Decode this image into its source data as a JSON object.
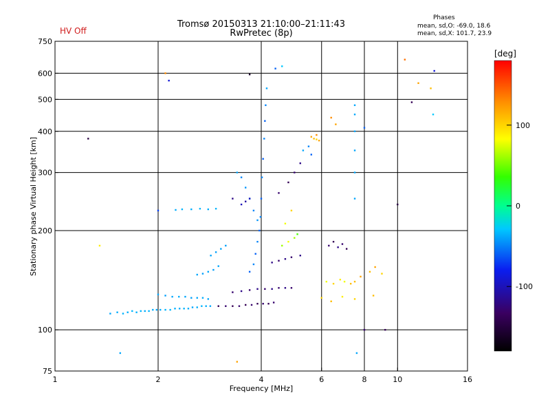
{
  "header": {
    "status": "HV Off",
    "title": "Tromsø 20150313 21:10:00–21:11:43",
    "subtitle": "RwPretec (8p)",
    "stats_title": "Phases",
    "stats_line1": "mean, sd,O: -69.0, 18.6",
    "stats_line2": "mean, sd,X: 101.7, 23.9"
  },
  "colorbar": {
    "unit": "[deg]",
    "range": [
      -180,
      180
    ],
    "ticks": [
      {
        "value": 100,
        "label": "100"
      },
      {
        "value": 0,
        "label": "0"
      },
      {
        "value": -100,
        "label": "-100"
      }
    ]
  },
  "chart_data": {
    "type": "scatter",
    "xlabel": "Frequency [MHz]",
    "ylabel": "Stationary phase Virtual Height [km]",
    "xscale": "log",
    "yscale": "log",
    "xlim": [
      1,
      16
    ],
    "ylim": [
      75,
      750
    ],
    "xticks": [
      1,
      2,
      4,
      6,
      8,
      10,
      16
    ],
    "yticks": [
      75,
      100,
      200,
      300,
      400,
      500,
      600,
      750
    ],
    "grid": true,
    "colorscale": "phase_deg",
    "series": [
      {
        "points": [
          [
            1.45,
            112,
            -40
          ],
          [
            1.52,
            113,
            -38
          ],
          [
            1.58,
            112,
            -36
          ],
          [
            1.63,
            113,
            -38
          ],
          [
            1.68,
            114,
            -35
          ],
          [
            1.73,
            113,
            -37
          ],
          [
            1.78,
            114,
            -36
          ],
          [
            1.83,
            114,
            -38
          ],
          [
            1.88,
            114,
            -36
          ],
          [
            1.93,
            115,
            -38
          ],
          [
            1.98,
            115,
            -40
          ],
          [
            2.03,
            115,
            -38
          ],
          [
            2.1,
            115,
            -36
          ],
          [
            2.17,
            115,
            -35
          ],
          [
            2.24,
            116,
            -37
          ],
          [
            2.31,
            116,
            -38
          ],
          [
            2.38,
            116,
            -36
          ],
          [
            2.45,
            116,
            -38
          ],
          [
            2.52,
            117,
            -40
          ],
          [
            2.6,
            117,
            -38
          ],
          [
            2.68,
            118,
            -36
          ],
          [
            2.76,
            118,
            -38
          ],
          [
            2.84,
            118,
            -40
          ],
          [
            2.0,
            128,
            -40
          ],
          [
            2.1,
            127,
            -42
          ],
          [
            2.2,
            126,
            -40
          ],
          [
            2.3,
            126,
            -38
          ],
          [
            2.4,
            126,
            -40
          ],
          [
            2.5,
            125,
            -42
          ],
          [
            2.6,
            125,
            -40
          ],
          [
            2.7,
            125,
            -38
          ],
          [
            2.8,
            124,
            -40
          ],
          [
            2.6,
            147,
            -40
          ],
          [
            2.7,
            148,
            -42
          ],
          [
            2.8,
            150,
            -40
          ],
          [
            2.9,
            152,
            -42
          ],
          [
            3.0,
            156,
            -40
          ],
          [
            2.85,
            168,
            -40
          ],
          [
            2.95,
            172,
            -42
          ],
          [
            3.05,
            176,
            -40
          ],
          [
            3.15,
            180,
            -42
          ],
          [
            2.35,
            232,
            -36
          ],
          [
            2.5,
            232,
            -38
          ],
          [
            2.65,
            233,
            -36
          ],
          [
            2.8,
            232,
            -38
          ],
          [
            2.95,
            233,
            -36
          ],
          [
            2.0,
            230,
            -70
          ],
          [
            2.25,
            231,
            -38
          ],
          [
            3.0,
            118,
            -140
          ],
          [
            3.15,
            118,
            -130
          ],
          [
            3.3,
            118,
            -140
          ],
          [
            3.45,
            118,
            -130
          ],
          [
            3.6,
            119,
            -140
          ],
          [
            3.75,
            119,
            -130
          ],
          [
            3.9,
            120,
            -140
          ],
          [
            4.05,
            120,
            -130
          ],
          [
            4.2,
            120,
            -140
          ],
          [
            4.35,
            121,
            -130
          ],
          [
            3.3,
            130,
            -130
          ],
          [
            3.5,
            131,
            -120
          ],
          [
            3.7,
            132,
            -130
          ],
          [
            3.9,
            133,
            -120
          ],
          [
            4.1,
            133,
            -130
          ],
          [
            4.3,
            133,
            -120
          ],
          [
            4.5,
            134,
            -130
          ],
          [
            4.7,
            134,
            -120
          ],
          [
            4.9,
            134,
            -130
          ],
          [
            3.7,
            150,
            -60
          ],
          [
            3.8,
            158,
            -50
          ],
          [
            3.85,
            170,
            -60
          ],
          [
            3.9,
            185,
            -50
          ],
          [
            3.95,
            200,
            -60
          ],
          [
            3.98,
            220,
            -50
          ],
          [
            4.0,
            250,
            -60
          ],
          [
            4.02,
            290,
            -50
          ],
          [
            4.05,
            330,
            -60
          ],
          [
            4.08,
            380,
            -50
          ],
          [
            4.1,
            430,
            -60
          ],
          [
            4.12,
            480,
            -50
          ],
          [
            4.15,
            540,
            -40
          ],
          [
            3.4,
            300,
            -40
          ],
          [
            3.5,
            290,
            -50
          ],
          [
            3.6,
            270,
            -45
          ],
          [
            3.7,
            250,
            -40
          ],
          [
            3.8,
            230,
            -50
          ],
          [
            3.9,
            215,
            -45
          ],
          [
            3.5,
            240,
            -100
          ],
          [
            3.6,
            245,
            -110
          ],
          [
            3.7,
            250,
            -100
          ],
          [
            3.3,
            250,
            -120
          ],
          [
            4.3,
            160,
            -120
          ],
          [
            4.5,
            162,
            -130
          ],
          [
            4.7,
            164,
            -120
          ],
          [
            4.9,
            166,
            -130
          ],
          [
            5.2,
            168,
            -120
          ],
          [
            4.6,
            180,
            60
          ],
          [
            4.8,
            185,
            80
          ],
          [
            5.0,
            190,
            60
          ],
          [
            5.1,
            195,
            40
          ],
          [
            4.7,
            210,
            80
          ],
          [
            4.9,
            230,
            100
          ],
          [
            4.5,
            260,
            -130
          ],
          [
            4.8,
            280,
            -140
          ],
          [
            5.0,
            300,
            -130
          ],
          [
            5.2,
            320,
            -120
          ],
          [
            5.6,
            385,
            120
          ],
          [
            5.7,
            380,
            110
          ],
          [
            5.8,
            378,
            100
          ],
          [
            5.9,
            375,
            120
          ],
          [
            5.8,
            390,
            130
          ],
          [
            5.3,
            350,
            -40
          ],
          [
            5.5,
            360,
            -50
          ],
          [
            5.6,
            340,
            -60
          ],
          [
            6.3,
            180,
            -130
          ],
          [
            6.5,
            185,
            -140
          ],
          [
            6.7,
            178,
            -120
          ],
          [
            6.9,
            182,
            -130
          ],
          [
            7.1,
            176,
            -140
          ],
          [
            6.2,
            140,
            80
          ],
          [
            6.5,
            138,
            100
          ],
          [
            6.8,
            142,
            90
          ],
          [
            7.0,
            140,
            80
          ],
          [
            7.3,
            138,
            110
          ],
          [
            7.5,
            140,
            110
          ],
          [
            7.8,
            145,
            120
          ],
          [
            8.3,
            150,
            110
          ],
          [
            8.6,
            155,
            120
          ],
          [
            9.0,
            148,
            100
          ],
          [
            6.0,
            125,
            100
          ],
          [
            6.4,
            122,
            110
          ],
          [
            6.9,
            126,
            90
          ],
          [
            7.5,
            124,
            100
          ],
          [
            8.5,
            127,
            110
          ],
          [
            7.5,
            250,
            -40
          ],
          [
            7.5,
            300,
            -40
          ],
          [
            7.5,
            350,
            -40
          ],
          [
            7.5,
            400,
            -40
          ],
          [
            7.5,
            450,
            -40
          ],
          [
            7.5,
            480,
            -40
          ],
          [
            6.4,
            440,
            130
          ],
          [
            6.6,
            420,
            120
          ],
          [
            8.0,
            410,
            -60
          ],
          [
            1.25,
            380,
            -150
          ],
          [
            1.35,
            180,
            90
          ],
          [
            1.55,
            85,
            -40
          ],
          [
            2.1,
            600,
            130
          ],
          [
            2.15,
            570,
            -90
          ],
          [
            4.6,
            630,
            -30
          ],
          [
            4.4,
            620,
            -60
          ],
          [
            3.4,
            80,
            120
          ],
          [
            10.5,
            660,
            140
          ],
          [
            11.5,
            560,
            120
          ],
          [
            12.5,
            540,
            110
          ],
          [
            12.8,
            610,
            -90
          ],
          [
            12.7,
            450,
            -30
          ],
          [
            10.0,
            240,
            -150
          ],
          [
            11.0,
            490,
            -140
          ],
          [
            7.6,
            85,
            -40
          ],
          [
            9.2,
            100,
            -140
          ],
          [
            8.0,
            100,
            -130
          ],
          [
            3.7,
            595,
            -160
          ]
        ]
      }
    ]
  }
}
